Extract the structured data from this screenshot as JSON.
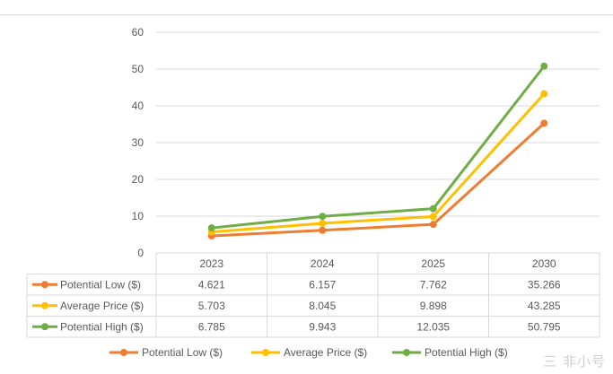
{
  "chart_data": {
    "type": "line",
    "title": "",
    "xlabel": "",
    "ylabel": "",
    "categories": [
      "2023",
      "2024",
      "2025",
      "2030"
    ],
    "ylim": [
      0,
      60
    ],
    "yticks": [
      "0",
      "10",
      "20",
      "30",
      "40",
      "50",
      "60"
    ],
    "grid": true,
    "legend_position": "bottom",
    "series": [
      {
        "name": "Potential Low ($)",
        "color": "#ed7d31",
        "values": [
          4.621,
          6.157,
          7.762,
          35.266
        ],
        "labels": [
          "4.621",
          "6.157",
          "7.762",
          "35.266"
        ]
      },
      {
        "name": "Average Price ($)",
        "color": "#ffc000",
        "values": [
          5.703,
          8.045,
          9.898,
          43.285
        ],
        "labels": [
          "5.703",
          "8.045",
          "9.898",
          "43.285"
        ]
      },
      {
        "name": "Potential High ($)",
        "color": "#70ad47",
        "values": [
          6.785,
          9.943,
          12.035,
          50.795
        ],
        "labels": [
          "6.785",
          "9.943",
          "12.035",
          "50.795"
        ]
      }
    ]
  },
  "watermark": "三 非小号"
}
